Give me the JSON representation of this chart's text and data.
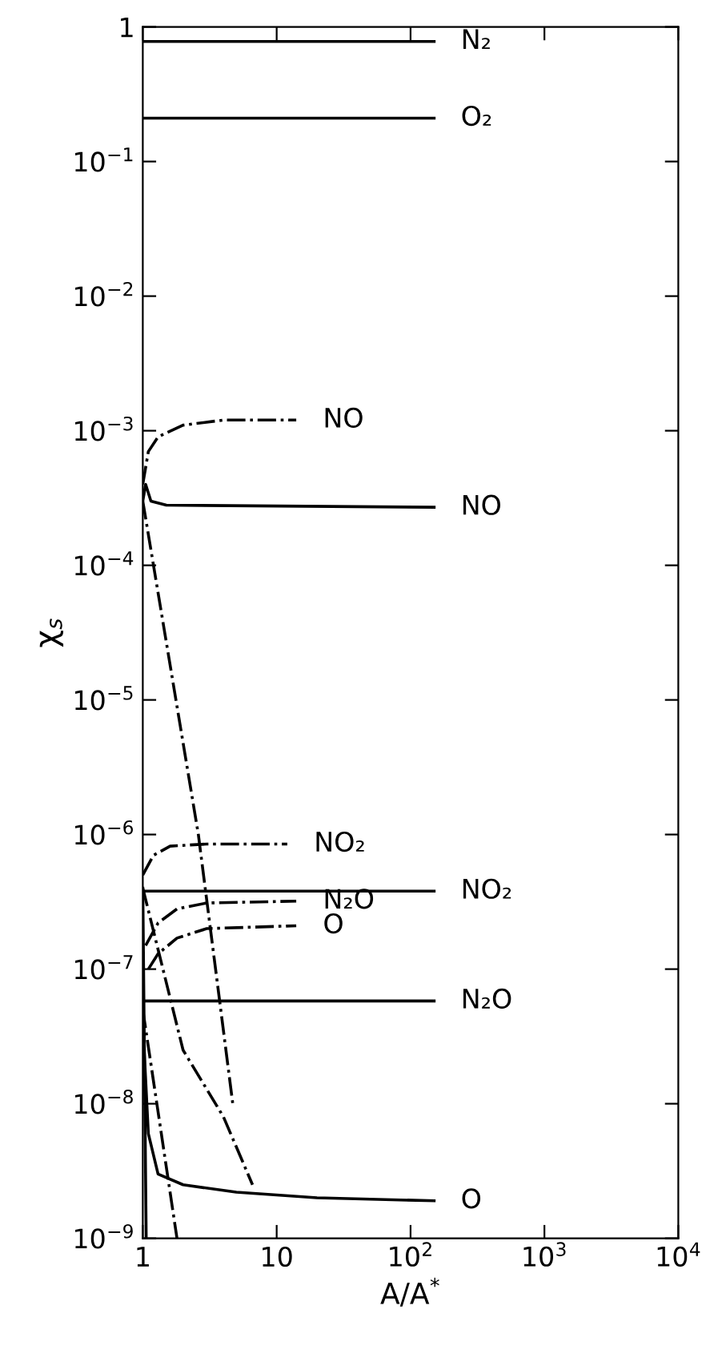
{
  "chart_data": {
    "type": "line",
    "xlabel": "A/A$^{*}$",
    "ylabel": "χ$_{s}$",
    "log": "xy",
    "xlim": [
      1,
      10000
    ],
    "ylim": [
      1e-09,
      1
    ],
    "xticks": [
      {
        "value": 1,
        "label": "1"
      },
      {
        "value": 10,
        "label": "10"
      },
      {
        "value": 100,
        "label": "10$^{2}$"
      },
      {
        "value": 1000,
        "label": "10$^{3}$"
      },
      {
        "value": 10000,
        "label": "10$^{4}$"
      }
    ],
    "yticks": [
      {
        "value": 1e-09,
        "label": "10$^{−9}$"
      },
      {
        "value": 1e-08,
        "label": "10$^{−8}$"
      },
      {
        "value": 1e-07,
        "label": "10$^{−7}$"
      },
      {
        "value": 1e-06,
        "label": "10$^{−6}$"
      },
      {
        "value": 1e-05,
        "label": "10$^{−5}$"
      },
      {
        "value": 0.0001,
        "label": "10$^{−4}$"
      },
      {
        "value": 0.001,
        "label": "10$^{−3}$"
      },
      {
        "value": 0.01,
        "label": "10$^{−2}$"
      },
      {
        "value": 0.1,
        "label": "10$^{−1}$"
      },
      {
        "value": 1,
        "label": "1"
      }
    ],
    "grid": false,
    "marker": "none",
    "series": [
      {
        "color": "#000000",
        "line_style": "solid",
        "x": [
          1,
          150
        ],
        "values": [
          0.78,
          0.78
        ]
      },
      {
        "color": "#000000",
        "line_style": "solid",
        "x": [
          1,
          150
        ],
        "values": [
          0.21,
          0.21
        ]
      },
      {
        "color": "#000000",
        "line_style": "solid",
        "x": [
          1,
          1.05,
          1.15,
          1.5,
          150
        ],
        "values": [
          0.0003,
          0.0004,
          0.0003,
          0.00028,
          0.00027
        ]
      },
      {
        "color": "#000000",
        "line_style": "solid",
        "x": [
          1,
          150
        ],
        "values": [
          3.8e-07,
          3.8e-07
        ]
      },
      {
        "color": "#000000",
        "line_style": "solid",
        "x": [
          1,
          150
        ],
        "values": [
          5.8e-08,
          5.8e-08
        ]
      },
      {
        "color": "#000000",
        "line_style": "solid",
        "x": [
          1,
          1.1,
          1.3,
          2,
          5,
          20,
          150
        ],
        "values": [
          4e-08,
          6e-09,
          3e-09,
          2.5e-09,
          2.2e-09,
          2e-09,
          1.9e-09
        ]
      },
      {
        "color": "#000000",
        "line_style": "solid",
        "x": [
          1,
          1.06
        ],
        "values": [
          4e-07,
          1e-09
        ]
      },
      {
        "color": "#000000",
        "line_style": "dashdot",
        "x": [
          1,
          1.1,
          1.3,
          2,
          4,
          14
        ],
        "values": [
          0.0004,
          0.0007,
          0.0009,
          0.0011,
          0.0012,
          0.0012
        ]
      },
      {
        "color": "#000000",
        "line_style": "dashdot",
        "x": [
          1,
          1.2,
          1.6,
          3,
          12
        ],
        "values": [
          5e-07,
          7e-07,
          8.2e-07,
          8.5e-07,
          8.5e-07
        ]
      },
      {
        "color": "#000000",
        "line_style": "dashdot",
        "x": [
          1.05,
          1.3,
          1.8,
          3,
          14
        ],
        "values": [
          1.5e-07,
          2.2e-07,
          2.8e-07,
          3.1e-07,
          3.2e-07
        ]
      },
      {
        "color": "#000000",
        "line_style": "dashdot",
        "x": [
          1.1,
          1.3,
          1.8,
          3,
          14
        ],
        "values": [
          1e-07,
          1.3e-07,
          1.7e-07,
          2e-07,
          2.1e-07
        ]
      },
      {
        "color": "#000000",
        "line_style": "dashdot",
        "x": [
          1,
          2.6,
          4.7
        ],
        "values": [
          0.0003,
          1e-06,
          1e-08
        ]
      },
      {
        "color": "#000000",
        "line_style": "dashdot",
        "x": [
          1,
          2,
          4,
          6.6
        ],
        "values": [
          4e-07,
          2.5e-08,
          8e-09,
          2.5e-09
        ]
      },
      {
        "color": "#000000",
        "line_style": "dashdot",
        "x": [
          1,
          1.8
        ],
        "values": [
          5e-08,
          1e-09
        ]
      }
    ],
    "annotations": [
      {
        "text": "N₂",
        "x": 150,
        "y": 0.78
      },
      {
        "text": "O₂",
        "x": 150,
        "y": 0.21
      },
      {
        "text": "NO",
        "x": 14,
        "y": 0.0012
      },
      {
        "text": "NO",
        "x": 150,
        "y": 0.00027
      },
      {
        "text": "NO₂",
        "x": 12,
        "y": 8.5e-07
      },
      {
        "text": "NO₂",
        "x": 150,
        "y": 3.8e-07
      },
      {
        "text": "N₂O",
        "x": 14,
        "y": 3.2e-07
      },
      {
        "text": "O",
        "x": 14,
        "y": 2.1e-07
      },
      {
        "text": "N₂O",
        "x": 150,
        "y": 5.8e-08
      },
      {
        "text": "O",
        "x": 150,
        "y": 1.9e-09
      }
    ]
  }
}
